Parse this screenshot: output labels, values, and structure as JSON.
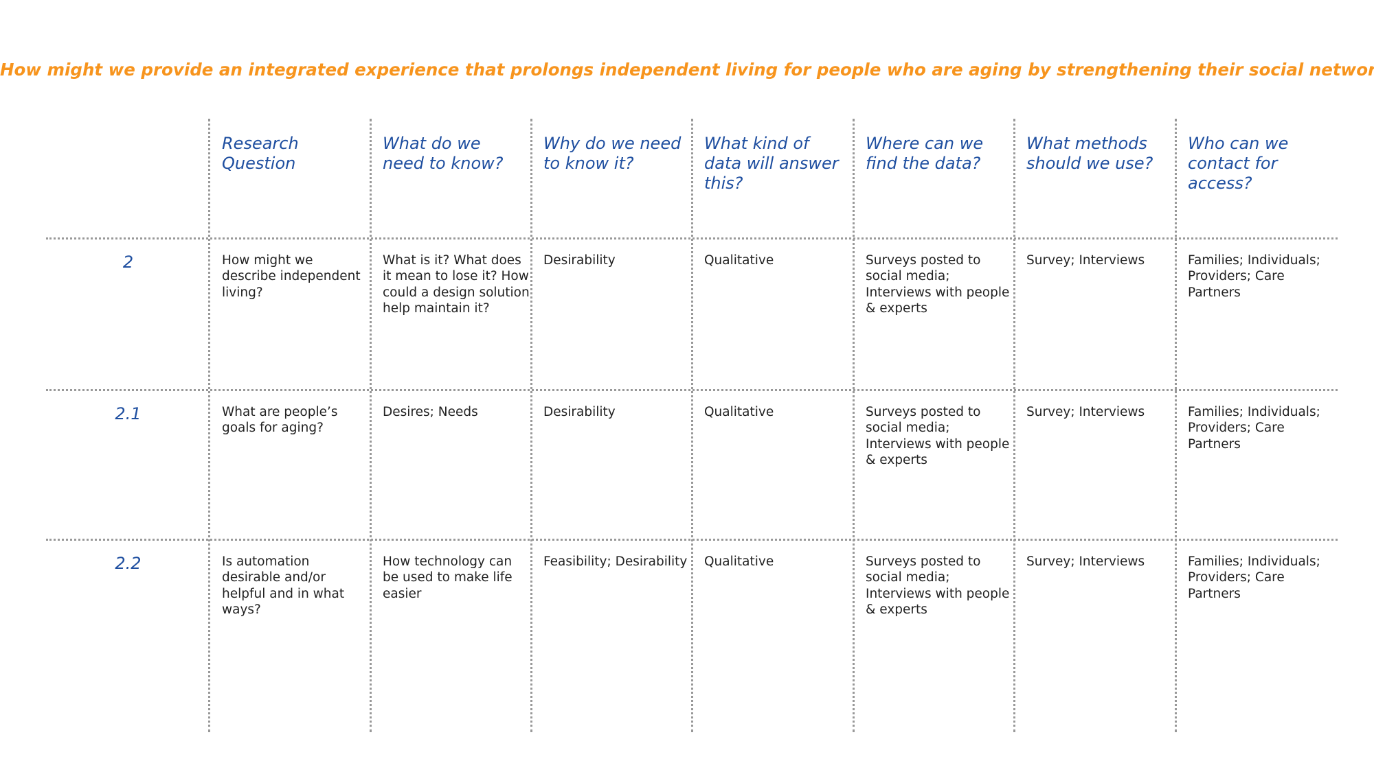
{
  "title": "How might we provide an integrated experience that prolongs independent living for people who are aging by strengthening their social network?",
  "headers": [
    "Research Question",
    "What do we need to know?",
    "Why do we need to know it?",
    "What kind of data will answer this?",
    "Where can we find the data?",
    "What methods should we use?",
    "Who can we contact for access?"
  ],
  "rows": [
    {
      "id": "2",
      "cells": [
        "How might we describe independent living?",
        "What is it? What does it mean to lose it? How could a design solution help maintain it?",
        "Desirability",
        "Qualitative",
        "Surveys posted to social media; Interviews with people & experts",
        "Survey; Interviews",
        "Families; Individuals; Providers; Care Partners"
      ]
    },
    {
      "id": "2.1",
      "cells": [
        "What are people’s goals for aging?",
        "Desires; Needs",
        "Desirability",
        "Qualitative",
        "Surveys posted to social media; Interviews with people & experts",
        "Survey; Interviews",
        "Families; Individuals; Providers; Care Partners"
      ]
    },
    {
      "id": "2.2",
      "cells": [
        "Is automation desirable and/or helpful and in what ways?",
        "How technology can be used to make life easier",
        "Feasibility; Desirability",
        "Qualitative",
        "Surveys posted to social media; Interviews with people & experts",
        "Survey; Interviews",
        "Families; Individuals; Providers; Care Partners"
      ]
    }
  ]
}
